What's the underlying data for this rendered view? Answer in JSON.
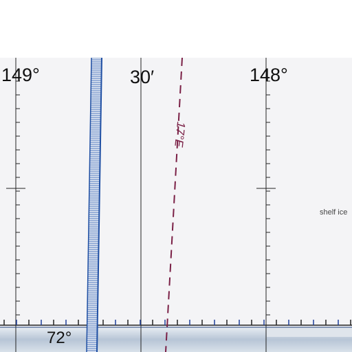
{
  "map": {
    "meridian_labels": {
      "west": "149°",
      "middle": "30′",
      "east": "148°"
    },
    "latitude_label": "72°",
    "declination_label": "17°E",
    "feature_label": "shelf ice",
    "colors": {
      "background": "#f4f4f6",
      "grid": "#222222",
      "declination": "#7a1f45",
      "boundary": "#1f4fa3",
      "shelf_ice": "#b9c6d6"
    },
    "icons": [
      "declination-line",
      "ice-boundary-hatch",
      "graticule-crosshair"
    ]
  }
}
